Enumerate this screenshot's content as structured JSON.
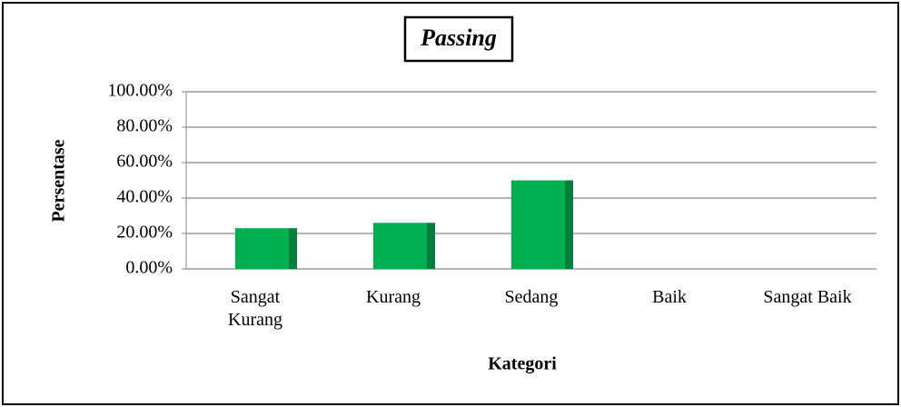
{
  "chart_data": {
    "type": "bar",
    "title": "Passing",
    "x_label": "Kategori",
    "y_label": "Persentase",
    "categories": [
      "Sangat Kurang",
      "Kurang",
      "Sedang",
      "Baik",
      "Sangat Baik"
    ],
    "values": [
      23,
      26,
      50,
      0,
      0
    ],
    "color": "#00b050",
    "side_color": "#00803a",
    "ylim": [
      0,
      100
    ],
    "yticks": [
      {
        "value": 0,
        "label": "0.00%"
      },
      {
        "value": 20,
        "label": "20.00%"
      },
      {
        "value": 40,
        "label": "40.00%"
      },
      {
        "value": 60,
        "label": "60.00%"
      },
      {
        "value": 80,
        "label": "80.00%"
      },
      {
        "value": 100,
        "label": "100.00%"
      }
    ],
    "grid": true
  }
}
